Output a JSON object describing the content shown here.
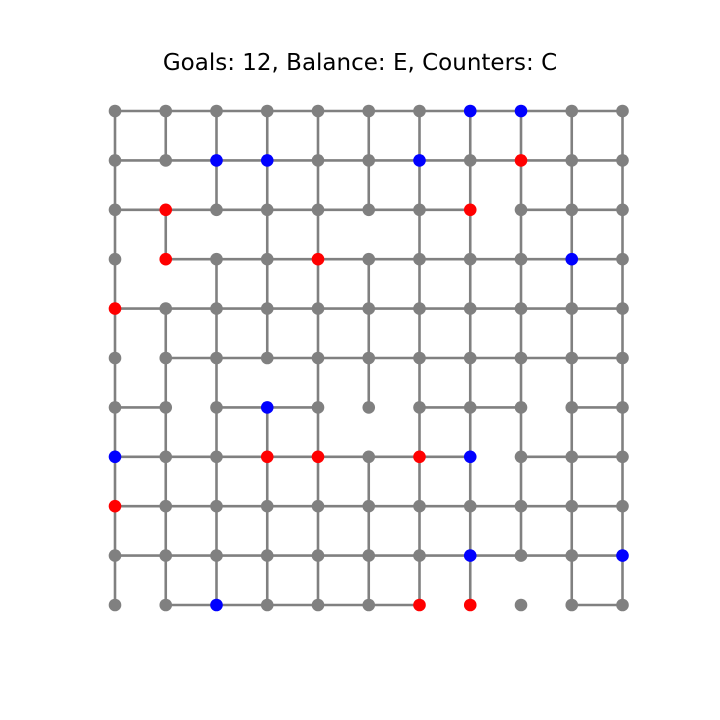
{
  "title": "Goals: 12, Balance: E, Counters: C",
  "grid": {
    "rows": 11,
    "cols": 11
  },
  "colors": {
    "edge": "#808080",
    "empty": "#808080",
    "red": "#ff0000",
    "blue": "#0000ff"
  },
  "h_edges": [
    "1111111111",
    "1111111111",
    "1111111011",
    "0111111111",
    "1111111111",
    "0111111111",
    "1011001101",
    "1111111011",
    "1111111111",
    "1111111111",
    "0111110001"
  ],
  "v_edges": [
    "11111111111",
    "10111111111",
    "11011011111",
    "10111111111",
    "11111111111",
    "11101111111",
    "11111011111",
    "11111111111",
    "11111111111",
    "11111111011"
  ],
  "red_nodes": [
    [
      1,
      8
    ],
    [
      2,
      1
    ],
    [
      2,
      7
    ],
    [
      3,
      1
    ],
    [
      3,
      4
    ],
    [
      4,
      0
    ],
    [
      7,
      3
    ],
    [
      7,
      4
    ],
    [
      7,
      6
    ],
    [
      8,
      0
    ],
    [
      10,
      6
    ],
    [
      10,
      7
    ]
  ],
  "blue_nodes": [
    [
      0,
      7
    ],
    [
      0,
      8
    ],
    [
      1,
      2
    ],
    [
      1,
      3
    ],
    [
      1,
      6
    ],
    [
      3,
      9
    ],
    [
      6,
      3
    ],
    [
      7,
      0
    ],
    [
      7,
      7
    ],
    [
      9,
      7
    ],
    [
      9,
      10
    ],
    [
      10,
      2
    ]
  ]
}
